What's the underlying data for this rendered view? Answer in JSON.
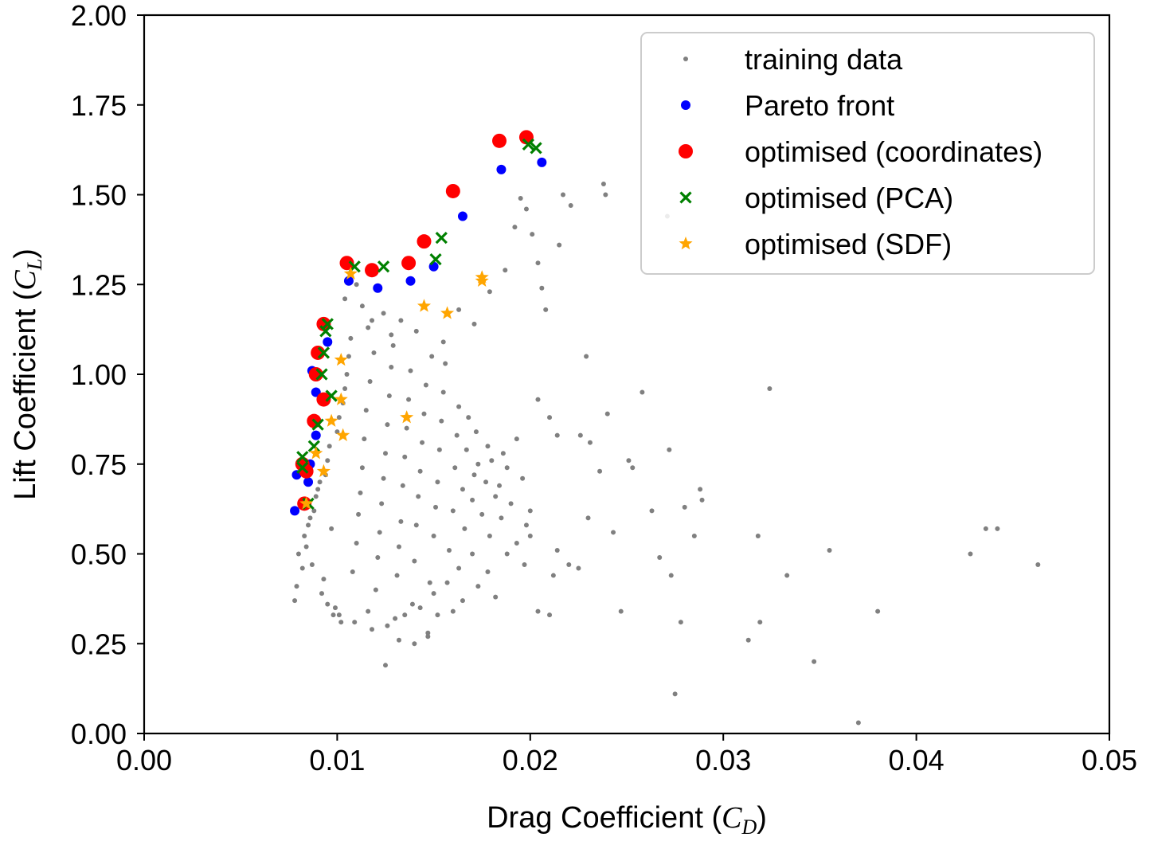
{
  "chart_data": {
    "type": "scatter",
    "title": "",
    "xlabel": "Drag Coefficient (C_D)",
    "xlabel_parts": {
      "prefix": "Drag Coefficient (",
      "symbol": "C",
      "subscript": "D",
      "suffix": ")"
    },
    "ylabel": "Lift Coefficient (C_L)",
    "ylabel_parts": {
      "prefix": "Lift Coefficient (",
      "symbol": "C",
      "subscript": "L",
      "suffix": ")"
    },
    "xlim": [
      0.0,
      0.05
    ],
    "ylim": [
      0.0,
      2.0
    ],
    "xticks": [
      0.0,
      0.01,
      0.02,
      0.03,
      0.04,
      0.05
    ],
    "xtick_labels": [
      "0.00",
      "0.01",
      "0.02",
      "0.03",
      "0.04",
      "0.05"
    ],
    "yticks": [
      0.0,
      0.25,
      0.5,
      0.75,
      1.0,
      1.25,
      1.5,
      1.75,
      2.0
    ],
    "ytick_labels": [
      "0.00",
      "0.25",
      "0.50",
      "0.75",
      "1.00",
      "1.25",
      "1.50",
      "1.75",
      "2.00"
    ],
    "grid": false,
    "legend_position": "top-right",
    "series": [
      {
        "name": "training data",
        "marker": "point",
        "color": "#808080",
        "points": [
          [
            0.0078,
            0.37
          ],
          [
            0.0079,
            0.41
          ],
          [
            0.008,
            0.5
          ],
          [
            0.0082,
            0.46
          ],
          [
            0.0083,
            0.55
          ],
          [
            0.0084,
            0.52
          ],
          [
            0.0085,
            0.58
          ],
          [
            0.0086,
            0.6
          ],
          [
            0.0087,
            0.47
          ],
          [
            0.0088,
            0.62
          ],
          [
            0.0089,
            0.66
          ],
          [
            0.009,
            0.68
          ],
          [
            0.0091,
            0.7
          ],
          [
            0.0092,
            0.39
          ],
          [
            0.0093,
            0.43
          ],
          [
            0.0094,
            0.72
          ],
          [
            0.0095,
            0.76
          ],
          [
            0.0096,
            0.8
          ],
          [
            0.0097,
            0.57
          ],
          [
            0.0098,
            0.33
          ],
          [
            0.0099,
            0.35
          ],
          [
            0.01,
            0.84
          ],
          [
            0.0101,
            0.88
          ],
          [
            0.0102,
            0.31
          ],
          [
            0.0103,
            0.92
          ],
          [
            0.0104,
            0.96
          ],
          [
            0.0105,
            1.0
          ],
          [
            0.0106,
            1.05
          ],
          [
            0.0107,
            1.1
          ],
          [
            0.0108,
            0.45
          ],
          [
            0.011,
            0.53
          ],
          [
            0.0111,
            0.61
          ],
          [
            0.0112,
            0.67
          ],
          [
            0.0113,
            0.74
          ],
          [
            0.0114,
            0.82
          ],
          [
            0.0115,
            0.9
          ],
          [
            0.0116,
            0.34
          ],
          [
            0.0117,
            0.98
          ],
          [
            0.0118,
            1.15
          ],
          [
            0.012,
            0.4
          ],
          [
            0.0121,
            0.49
          ],
          [
            0.0122,
            0.56
          ],
          [
            0.0123,
            0.64
          ],
          [
            0.0124,
            0.71
          ],
          [
            0.0125,
            0.78
          ],
          [
            0.0126,
            0.86
          ],
          [
            0.0127,
            0.94
          ],
          [
            0.0128,
            1.02
          ],
          [
            0.0129,
            1.08
          ],
          [
            0.013,
            0.32
          ],
          [
            0.0131,
            0.44
          ],
          [
            0.0132,
            0.52
          ],
          [
            0.0133,
            0.59
          ],
          [
            0.0134,
            0.69
          ],
          [
            0.0135,
            0.77
          ],
          [
            0.0136,
            0.85
          ],
          [
            0.0137,
            0.93
          ],
          [
            0.0138,
            1.01
          ],
          [
            0.0139,
            0.36
          ],
          [
            0.014,
            0.48
          ],
          [
            0.0141,
            0.58
          ],
          [
            0.0142,
            0.66
          ],
          [
            0.0143,
            0.73
          ],
          [
            0.0144,
            0.81
          ],
          [
            0.0145,
            0.89
          ],
          [
            0.0146,
            0.97
          ],
          [
            0.0147,
            0.28
          ],
          [
            0.0148,
            0.42
          ],
          [
            0.015,
            0.55
          ],
          [
            0.0151,
            0.63
          ],
          [
            0.0152,
            0.7
          ],
          [
            0.0153,
            0.79
          ],
          [
            0.0154,
            0.87
          ],
          [
            0.0155,
            0.95
          ],
          [
            0.0156,
            1.03
          ],
          [
            0.0158,
            0.51
          ],
          [
            0.016,
            0.62
          ],
          [
            0.0161,
            0.74
          ],
          [
            0.0162,
            0.83
          ],
          [
            0.0163,
            0.91
          ],
          [
            0.0165,
            0.68
          ],
          [
            0.0166,
            0.57
          ],
          [
            0.0167,
            0.79
          ],
          [
            0.0168,
            0.88
          ],
          [
            0.017,
            0.65
          ],
          [
            0.0171,
            0.72
          ],
          [
            0.0172,
            0.84
          ],
          [
            0.0173,
            0.75
          ],
          [
            0.0175,
            0.61
          ],
          [
            0.0177,
            0.7
          ],
          [
            0.0178,
            0.8
          ],
          [
            0.018,
            0.76
          ],
          [
            0.0182,
            0.66
          ],
          [
            0.0184,
            0.69
          ],
          [
            0.0186,
            0.78
          ],
          [
            0.0188,
            0.74
          ],
          [
            0.019,
            0.64
          ],
          [
            0.0193,
            0.82
          ],
          [
            0.0196,
            0.71
          ],
          [
            0.02,
            0.62
          ],
          [
            0.0104,
            1.21
          ],
          [
            0.011,
            1.25
          ],
          [
            0.0113,
            1.19
          ],
          [
            0.0116,
            1.13
          ],
          [
            0.0119,
            1.06
          ],
          [
            0.0124,
            1.17
          ],
          [
            0.0128,
            1.11
          ],
          [
            0.0133,
            1.15
          ],
          [
            0.0141,
            1.12
          ],
          [
            0.0149,
            1.05
          ],
          [
            0.0155,
            1.09
          ],
          [
            0.0163,
            1.18
          ],
          [
            0.0171,
            1.14
          ],
          [
            0.0179,
            1.23
          ],
          [
            0.0187,
            1.29
          ],
          [
            0.0192,
            1.41
          ],
          [
            0.0195,
            1.49
          ],
          [
            0.0198,
            1.46
          ],
          [
            0.0201,
            1.39
          ],
          [
            0.0204,
            1.31
          ],
          [
            0.0206,
            1.24
          ],
          [
            0.0208,
            1.18
          ],
          [
            0.0204,
            0.93
          ],
          [
            0.021,
            0.88
          ],
          [
            0.0214,
            0.83
          ],
          [
            0.0215,
            1.36
          ],
          [
            0.0217,
            1.5
          ],
          [
            0.0221,
            1.47
          ],
          [
            0.0229,
            1.05
          ],
          [
            0.0226,
            0.83
          ],
          [
            0.0231,
            0.81
          ],
          [
            0.0236,
            0.73
          ],
          [
            0.0238,
            1.53
          ],
          [
            0.0239,
            1.5
          ],
          [
            0.024,
            0.89
          ],
          [
            0.0243,
            0.56
          ],
          [
            0.0247,
            0.34
          ],
          [
            0.0251,
            0.76
          ],
          [
            0.0253,
            0.74
          ],
          [
            0.0258,
            0.95
          ],
          [
            0.0263,
            0.62
          ],
          [
            0.0267,
            0.49
          ],
          [
            0.0271,
            1.44
          ],
          [
            0.0272,
            0.79
          ],
          [
            0.0273,
            0.44
          ],
          [
            0.0275,
            0.11
          ],
          [
            0.0278,
            0.31
          ],
          [
            0.028,
            0.63
          ],
          [
            0.0285,
            0.55
          ],
          [
            0.0288,
            0.68
          ],
          [
            0.0289,
            0.65
          ],
          [
            0.0313,
            0.26
          ],
          [
            0.0318,
            0.55
          ],
          [
            0.0319,
            0.31
          ],
          [
            0.0324,
            0.96
          ],
          [
            0.0333,
            0.44
          ],
          [
            0.0347,
            0.2
          ],
          [
            0.0355,
            0.51
          ],
          [
            0.037,
            0.03
          ],
          [
            0.038,
            0.34
          ],
          [
            0.0428,
            0.5
          ],
          [
            0.0436,
            0.57
          ],
          [
            0.0442,
            0.57
          ],
          [
            0.0463,
            0.47
          ],
          [
            0.0125,
            0.19
          ],
          [
            0.0132,
            0.26
          ],
          [
            0.014,
            0.25
          ],
          [
            0.0147,
            0.27
          ],
          [
            0.0152,
            0.33
          ],
          [
            0.016,
            0.34
          ],
          [
            0.0165,
            0.37
          ],
          [
            0.0173,
            0.41
          ],
          [
            0.0178,
            0.45
          ],
          [
            0.0182,
            0.38
          ],
          [
            0.0188,
            0.5
          ],
          [
            0.0197,
            0.47
          ],
          [
            0.02,
            0.55
          ],
          [
            0.0204,
            0.34
          ],
          [
            0.021,
            0.33
          ],
          [
            0.0212,
            0.44
          ],
          [
            0.0214,
            0.51
          ],
          [
            0.022,
            0.47
          ],
          [
            0.0225,
            0.46
          ],
          [
            0.023,
            0.6
          ],
          [
            0.0198,
            0.58
          ],
          [
            0.0193,
            0.53
          ],
          [
            0.0185,
            0.6
          ],
          [
            0.0179,
            0.55
          ],
          [
            0.017,
            0.5
          ],
          [
            0.0163,
            0.46
          ],
          [
            0.0157,
            0.42
          ],
          [
            0.015,
            0.39
          ],
          [
            0.0143,
            0.35
          ],
          [
            0.0135,
            0.33
          ],
          [
            0.0126,
            0.3
          ],
          [
            0.0118,
            0.29
          ],
          [
            0.0109,
            0.31
          ],
          [
            0.0101,
            0.33
          ],
          [
            0.0095,
            0.36
          ]
        ]
      },
      {
        "name": "Pareto front",
        "marker": "circle",
        "color": "#0000ff",
        "points": [
          [
            0.0078,
            0.62
          ],
          [
            0.0079,
            0.72
          ],
          [
            0.0085,
            0.7
          ],
          [
            0.0086,
            0.75
          ],
          [
            0.0089,
            0.83
          ],
          [
            0.0087,
            1.01
          ],
          [
            0.0089,
            0.95
          ],
          [
            0.0095,
            1.09
          ],
          [
            0.0106,
            1.26
          ],
          [
            0.0121,
            1.24
          ],
          [
            0.0138,
            1.26
          ],
          [
            0.015,
            1.3
          ],
          [
            0.0165,
            1.44
          ],
          [
            0.0185,
            1.57
          ],
          [
            0.0206,
            1.59
          ]
        ]
      },
      {
        "name": "optimised (coordinates)",
        "marker": "bigcircle",
        "color": "#ff0000",
        "points": [
          [
            0.0083,
            0.64
          ],
          [
            0.0084,
            0.73
          ],
          [
            0.0082,
            0.75
          ],
          [
            0.0088,
            0.87
          ],
          [
            0.0089,
            1.0
          ],
          [
            0.009,
            1.06
          ],
          [
            0.0093,
            1.14
          ],
          [
            0.0093,
            0.93
          ],
          [
            0.0105,
            1.31
          ],
          [
            0.0118,
            1.29
          ],
          [
            0.0137,
            1.31
          ],
          [
            0.0145,
            1.37
          ],
          [
            0.016,
            1.51
          ],
          [
            0.0184,
            1.65
          ],
          [
            0.0198,
            1.66
          ]
        ]
      },
      {
        "name": "optimised (PCA)",
        "marker": "x",
        "color": "#008000",
        "points": [
          [
            0.0085,
            0.64
          ],
          [
            0.0082,
            0.77
          ],
          [
            0.0082,
            0.74
          ],
          [
            0.0088,
            0.8
          ],
          [
            0.009,
            0.86
          ],
          [
            0.0092,
            1.0
          ],
          [
            0.0093,
            1.06
          ],
          [
            0.0094,
            1.12
          ],
          [
            0.0095,
            1.14
          ],
          [
            0.0097,
            0.94
          ],
          [
            0.0109,
            1.3
          ],
          [
            0.0124,
            1.3
          ],
          [
            0.0151,
            1.32
          ],
          [
            0.0154,
            1.38
          ],
          [
            0.0199,
            1.64
          ],
          [
            0.0203,
            1.63
          ]
        ]
      },
      {
        "name": "optimised (SDF)",
        "marker": "star",
        "color": "#ffa500",
        "points": [
          [
            0.0084,
            0.64
          ],
          [
            0.0093,
            0.73
          ],
          [
            0.0089,
            0.78
          ],
          [
            0.0097,
            0.87
          ],
          [
            0.0102,
            0.93
          ],
          [
            0.0103,
            0.83
          ],
          [
            0.0102,
            1.04
          ],
          [
            0.0107,
            1.28
          ],
          [
            0.0136,
            0.88
          ],
          [
            0.0145,
            1.19
          ],
          [
            0.0157,
            1.17
          ],
          [
            0.0175,
            1.27
          ],
          [
            0.0175,
            1.26
          ]
        ]
      }
    ]
  }
}
